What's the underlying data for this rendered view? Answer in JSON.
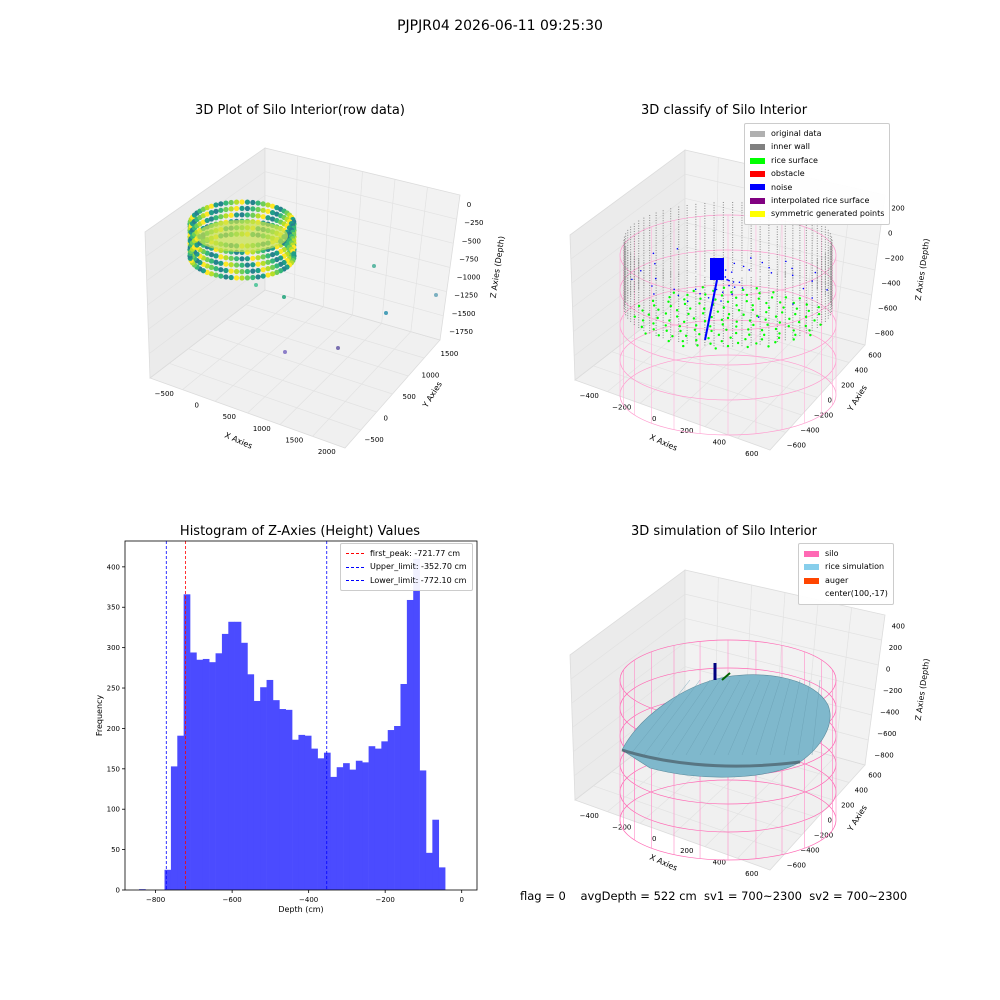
{
  "suptitle": "PJPJR04 2026-06-11 09:25:30",
  "panels": {
    "raw": {
      "title": "3D Plot of Silo Interior(row data)",
      "xlabel": "X Axies",
      "ylabel": "Y Axies",
      "zlabel": "Z Axies (Depth)",
      "xticks": [
        "−500",
        "0",
        "500",
        "1000",
        "1500",
        "2000"
      ],
      "yticks": [
        "−500",
        "0",
        "500",
        "1000",
        "1500"
      ],
      "zticks": [
        "0",
        "−250",
        "−500",
        "−750",
        "−1000",
        "−1250",
        "−1500",
        "−1750"
      ]
    },
    "classify": {
      "title": "3D classify of Silo Interior",
      "xlabel": "X Axies",
      "ylabel": "Y Axies",
      "zlabel": "Z Axies (Depth)",
      "xticks": [
        "−400",
        "−200",
        "0",
        "200",
        "400",
        "600"
      ],
      "yticks": [
        "−600",
        "−400",
        "−200",
        "0",
        "200",
        "400",
        "600"
      ],
      "zticks": [
        "200",
        "0",
        "−200",
        "−400",
        "−600",
        "−800"
      ],
      "legend": [
        {
          "label": "original data",
          "color": "#b0b0b0"
        },
        {
          "label": "inner wall",
          "color": "#808080"
        },
        {
          "label": "rice surface",
          "color": "#00ff00"
        },
        {
          "label": "obstacle",
          "color": "#ff0000"
        },
        {
          "label": "noise",
          "color": "#0000ff"
        },
        {
          "label": "interpolated rice surface",
          "color": "#800080"
        },
        {
          "label": "symmetric generated points",
          "color": "#ffff00"
        }
      ]
    },
    "simulation": {
      "title": "3D simulation of Silo Interior",
      "xlabel": "X Axies",
      "ylabel": "Y Axies",
      "zlabel": "Z Axies (Depth)",
      "xticks": [
        "−400",
        "−200",
        "0",
        "200",
        "400",
        "600"
      ],
      "yticks": [
        "−600",
        "−400",
        "−200",
        "0",
        "200",
        "400",
        "600"
      ],
      "zticks": [
        "400",
        "200",
        "0",
        "−200",
        "−400",
        "−600",
        "−800"
      ],
      "legend": [
        {
          "label": "silo",
          "color": "#ff69b4"
        },
        {
          "label": "rice simulation",
          "color": "#87ceeb"
        },
        {
          "label": "auger",
          "color": "#ff4500"
        },
        {
          "label": "center(100,-17)",
          "color": ""
        }
      ]
    }
  },
  "chart_data": {
    "type": "bar",
    "title": "Histogram of Z-Axies (Height) Values",
    "xlabel": "Depth (cm)",
    "ylabel": "Frequency",
    "xlim": [
      -880,
      40
    ],
    "ylim": [
      0,
      432
    ],
    "xticks": [
      -800,
      -600,
      -400,
      -200,
      0
    ],
    "xtick_labels": [
      "−800",
      "−600",
      "−400",
      "−200",
      "0"
    ],
    "yticks": [
      0,
      50,
      100,
      150,
      200,
      250,
      300,
      350,
      400
    ],
    "bar_color": "#4b4bff",
    "bin_width": 16.67,
    "bin_starts": [
      -843.3,
      -826.7,
      -810,
      -793.3,
      -776.7,
      -760,
      -743.3,
      -726.7,
      -710,
      -693.3,
      -676.7,
      -660,
      -643.3,
      -626.7,
      -610,
      -593.3,
      -576.7,
      -560,
      -543.3,
      -526.7,
      -510,
      -493.3,
      -476.7,
      -460,
      -443.3,
      -426.7,
      -410,
      -393.3,
      -376.7,
      -360,
      -343.3,
      -326.7,
      -310,
      -293.3,
      -276.7,
      -260,
      -243.3,
      -226.7,
      -210,
      -193.3,
      -176.7,
      -160,
      -143.3,
      -126.7,
      -110,
      -93.3,
      -76.7,
      -60,
      -43.3,
      -26.7,
      -10
    ],
    "values": [
      1,
      0,
      0,
      0,
      25,
      153,
      191,
      366,
      294,
      285,
      286,
      282,
      293,
      317,
      332,
      332,
      306,
      267,
      234,
      251,
      260,
      235,
      224,
      223,
      186,
      192,
      191,
      175,
      163,
      170,
      140,
      152,
      157,
      149,
      160,
      158,
      178,
      175,
      184,
      198,
      203,
      255,
      359,
      410,
      148,
      46,
      87,
      28,
      0,
      0,
      0
    ],
    "vlines": [
      {
        "label": "first_peak: -721.77 cm",
        "x": -721.77,
        "color": "#ff0000"
      },
      {
        "label": "Upper_limit: -352.70 cm",
        "x": -352.7,
        "color": "#0000ff"
      },
      {
        "label": "Lower_limit: -772.10 cm",
        "x": -772.1,
        "color": "#0000ff"
      }
    ]
  },
  "footer": {
    "text": "flag = 0    avgDepth = 522 cm  sv1 = 700~2300  sv2 = 700~2300"
  }
}
